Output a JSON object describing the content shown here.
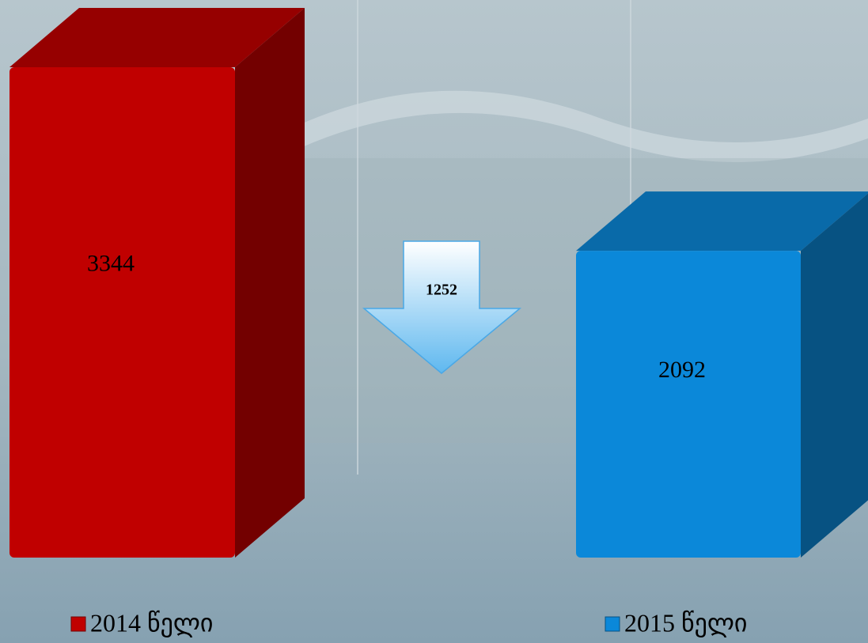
{
  "chart_data": {
    "type": "bar3d",
    "series": [
      {
        "name": "2014 წელი",
        "color": "#c00000",
        "values": [
          3344
        ]
      },
      {
        "name": "2015 წელი",
        "color": "#0b88d9",
        "values": [
          2092
        ]
      }
    ],
    "difference": 1252,
    "legend": "bottom"
  }
}
